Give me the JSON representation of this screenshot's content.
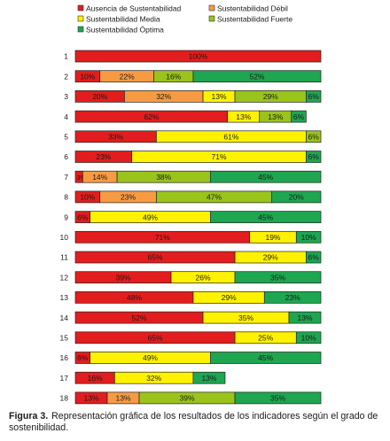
{
  "chart_data": {
    "type": "bar",
    "stacked": true,
    "orientation": "horizontal",
    "categories": [
      "1",
      "2",
      "3",
      "4",
      "5",
      "6",
      "7",
      "8",
      "9",
      "10",
      "11",
      "12",
      "13",
      "14",
      "15",
      "16",
      "17",
      "18"
    ],
    "series": [
      {
        "name": "Ausencia de Sustentabilidad",
        "color": "#e31d1d",
        "values": [
          100,
          10,
          20,
          62,
          33,
          23,
          3,
          10,
          6,
          71,
          65,
          39,
          48,
          52,
          65,
          6,
          16,
          13
        ]
      },
      {
        "name": "Sustentabilidad Débil",
        "color": "#f79b43",
        "values": [
          0,
          22,
          32,
          0,
          0,
          0,
          14,
          23,
          0,
          0,
          0,
          0,
          0,
          0,
          0,
          0,
          0,
          13
        ]
      },
      {
        "name": "Sustentabilidad Media",
        "color": "#fff200",
        "values": [
          0,
          0,
          13,
          13,
          61,
          71,
          0,
          0,
          49,
          19,
          29,
          26,
          29,
          35,
          25,
          49,
          32,
          0
        ]
      },
      {
        "name": "Sustentabilidad Fuerte",
        "color": "#9ac31c",
        "values": [
          0,
          16,
          29,
          13,
          6,
          0,
          38,
          47,
          0,
          0,
          0,
          0,
          0,
          0,
          0,
          0,
          0,
          39
        ]
      },
      {
        "name": "Sustentabilidad Óptima",
        "color": "#1ea650",
        "values": [
          0,
          52,
          6,
          6,
          0,
          6,
          45,
          20,
          45,
          10,
          6,
          35,
          23,
          13,
          10,
          45,
          13,
          35
        ]
      }
    ],
    "labels": [
      [
        "100%",
        "",
        "",
        "",
        ""
      ],
      [
        "10%",
        "22%",
        "",
        "16%",
        "52%"
      ],
      [
        "20%",
        "32%",
        "13%",
        "29%",
        "6%"
      ],
      [
        "62%",
        "",
        "13%",
        "13%",
        "6%"
      ],
      [
        "33%",
        "",
        "61%",
        "6%",
        ""
      ],
      [
        "23%",
        "",
        "71%",
        "",
        "6%"
      ],
      [
        "3%",
        "14%",
        "",
        "38%",
        "45%"
      ],
      [
        "10%",
        "23%",
        "",
        "47%",
        "20%"
      ],
      [
        "6%",
        "",
        "49%",
        "",
        "45%"
      ],
      [
        "71%",
        "",
        "19%",
        "",
        "10%"
      ],
      [
        "65%",
        "",
        "29%",
        "",
        "6%"
      ],
      [
        "39%",
        "",
        "26%",
        "",
        "35%"
      ],
      [
        "48%",
        "",
        "29%",
        "",
        "23%"
      ],
      [
        "52%",
        "",
        "35%",
        "",
        "13%"
      ],
      [
        "65%",
        "",
        "25%",
        "",
        "10%"
      ],
      [
        "6%",
        "",
        "49%",
        "",
        "45%"
      ],
      [
        "16%",
        "",
        "32%",
        "",
        "13%"
      ],
      [
        "13%",
        "13%",
        "",
        "39%",
        "35%"
      ]
    ],
    "xlim": [
      0,
      100
    ],
    "legend_position": "top",
    "title": "",
    "xlabel": "",
    "ylabel": ""
  },
  "caption": {
    "label": "Figura 3.",
    "text": "Representación gráfica de los resultados de los indicadores según el grado de sostenibilidad."
  }
}
